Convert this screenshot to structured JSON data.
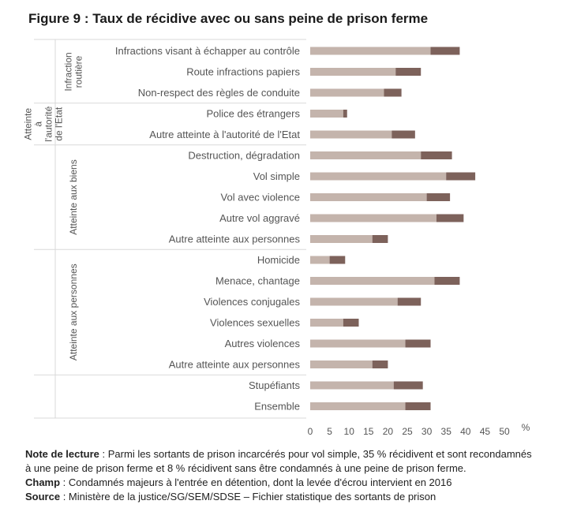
{
  "title": "Figure 9 : Taux de récidive avec ou sans peine de prison ferme",
  "colors": {
    "avec_peine_ferme": "#c4b4ac",
    "sans_peine_ferme": "#7d625b",
    "grid": "#d9d9d9",
    "text": "#555555"
  },
  "chart_data": {
    "type": "bar",
    "orientation": "horizontal",
    "stacked": true,
    "unit_label": "%",
    "xlim": [
      0,
      50
    ],
    "xticks": [
      0,
      5,
      10,
      15,
      20,
      25,
      30,
      35,
      40,
      45,
      50
    ],
    "grid": false,
    "legend": "none",
    "groups": [
      {
        "label": "Infraction routière",
        "label_lines": [
          "Infraction",
          "routière"
        ],
        "categories": [
          "Infractions visant à échapper au contrôle",
          "Route infractions papiers",
          "Non-respect des règles de conduite"
        ]
      },
      {
        "label": "Atteinte à l'autorité de l'Etat",
        "label_lines": [
          "Atteinte",
          "à",
          "l'autorité",
          "de l'Etat"
        ],
        "categories": [
          "Police des étrangers",
          "Autre atteinte à l'autorité de l'Etat"
        ]
      },
      {
        "label": "Atteinte aux biens",
        "label_lines": [
          "Atteinte aux biens"
        ],
        "categories": [
          "Destruction, dégradation",
          "Vol simple",
          "Vol avec violence",
          "Autre vol aggravé",
          "Autre atteinte aux personnes"
        ]
      },
      {
        "label": "Atteinte aux personnes",
        "label_lines": [
          "Atteinte aux personnes"
        ],
        "categories": [
          "Homicide",
          "Menace, chantage",
          "Violences conjugales",
          "Violences sexuelles",
          "Autres violences",
          "Autre atteinte aux personnes"
        ]
      },
      {
        "label": "",
        "label_lines": [],
        "categories": [
          "Stupéfiants",
          "Ensemble"
        ]
      }
    ],
    "categories": [
      "Infractions visant à échapper au contrôle",
      "Route infractions papiers",
      "Non-respect des règles de conduite",
      "Police des étrangers",
      "Autre atteinte à l'autorité de l'Etat",
      "Destruction, dégradation",
      "Vol simple",
      "Vol avec violence",
      "Autre vol aggravé",
      "Autre atteinte aux personnes",
      "Homicide",
      "Menace, chantage",
      "Violences conjugales",
      "Violences sexuelles",
      "Autres violences",
      "Autre atteinte aux personnes",
      "Stupéfiants",
      "Ensemble"
    ],
    "series": [
      {
        "values": [
          31,
          22,
          19,
          8.5,
          21,
          28.5,
          35,
          30,
          32.5,
          16,
          5,
          32,
          22.5,
          8.5,
          24.5,
          16,
          21.5,
          24.5
        ]
      },
      {
        "values": [
          7.5,
          6.5,
          4.5,
          1,
          6,
          8,
          7.5,
          6,
          7,
          4,
          4,
          6.5,
          6,
          4,
          6.5,
          4,
          7.5,
          6.5
        ]
      }
    ]
  },
  "notes": {
    "lecture_label": "Note de lecture",
    "lecture_text": " : Parmi les sortants de prison incarcérés pour vol simple, 35 % récidivent et sont recondamnés à une peine de prison ferme et 8 % récidivent sans être condamnés à une peine de prison ferme.",
    "champ_label": "Champ",
    "champ_text": " : Condamnés majeurs à l'entrée en détention, dont la levée d'écrou intervient en 2016",
    "source_label": "Source",
    "source_text": " : Ministère de la justice/SG/SEM/SDSE – Fichier statistique des sortants de prison"
  }
}
